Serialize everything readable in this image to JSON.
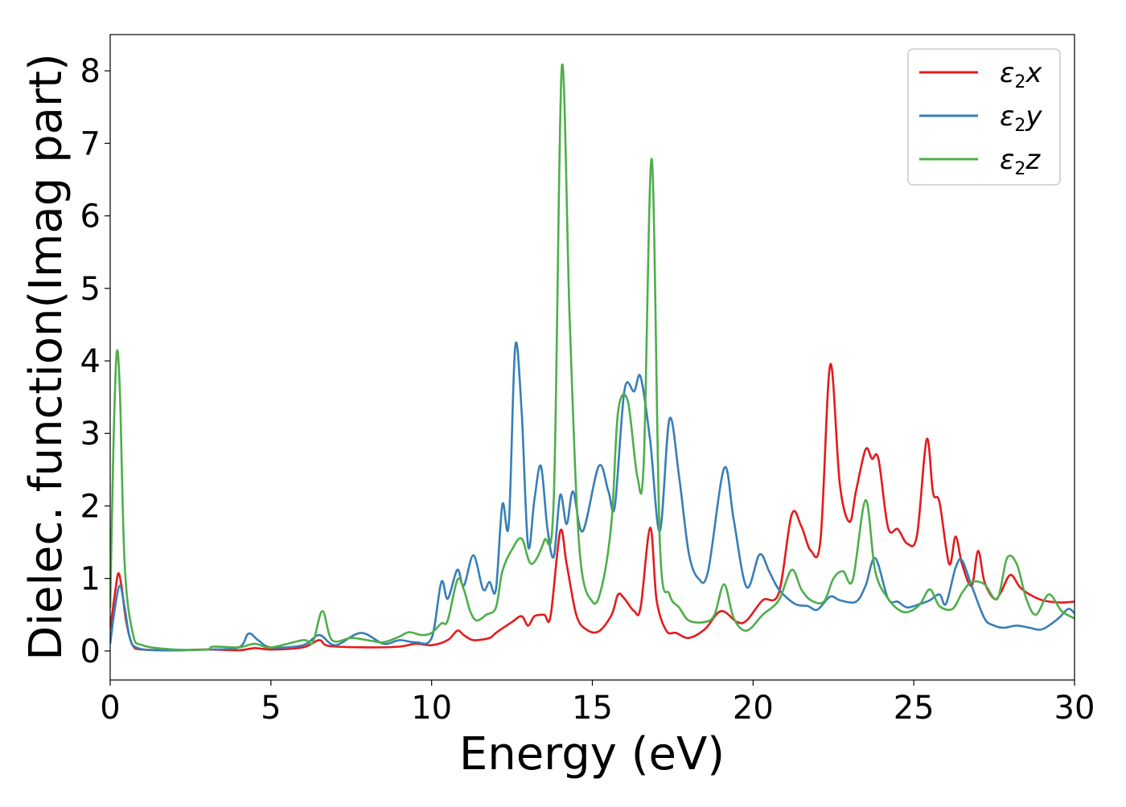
{
  "chart_data": {
    "type": "line",
    "title": "",
    "xlabel": "Energy (eV)",
    "ylabel": "Dielec. function(Imag part)",
    "xlim": [
      0,
      30
    ],
    "ylim": [
      -0.4,
      8.5
    ],
    "xticks": [
      0,
      5,
      10,
      15,
      20,
      25,
      30
    ],
    "yticks": [
      0,
      1,
      2,
      3,
      4,
      5,
      6,
      7,
      8
    ],
    "grid": false,
    "legend_position": "top-right",
    "series": [
      {
        "name": "ε2x",
        "legend_base": "ε",
        "legend_sub": "2",
        "legend_tail": "x",
        "color": "#e41a1c",
        "points": [
          [
            0,
            0.3
          ],
          [
            0.15,
            0.8
          ],
          [
            0.25,
            1.07
          ],
          [
            0.35,
            0.9
          ],
          [
            0.5,
            0.4
          ],
          [
            0.7,
            0.08
          ],
          [
            1,
            0.02
          ],
          [
            2,
            0.01
          ],
          [
            3,
            0.02
          ],
          [
            4,
            0.01
          ],
          [
            4.5,
            0.04
          ],
          [
            5,
            0.02
          ],
          [
            6,
            0.05
          ],
          [
            6.5,
            0.15
          ],
          [
            6.8,
            0.07
          ],
          [
            8,
            0.05
          ],
          [
            9,
            0.06
          ],
          [
            9.5,
            0.1
          ],
          [
            10,
            0.08
          ],
          [
            10.5,
            0.15
          ],
          [
            10.8,
            0.28
          ],
          [
            11,
            0.22
          ],
          [
            11.3,
            0.15
          ],
          [
            11.8,
            0.18
          ],
          [
            12,
            0.25
          ],
          [
            12.5,
            0.4
          ],
          [
            12.8,
            0.48
          ],
          [
            13,
            0.35
          ],
          [
            13.2,
            0.48
          ],
          [
            13.5,
            0.5
          ],
          [
            13.7,
            0.48
          ],
          [
            14,
            1.65
          ],
          [
            14.2,
            1.2
          ],
          [
            14.5,
            0.5
          ],
          [
            14.8,
            0.3
          ],
          [
            15.2,
            0.27
          ],
          [
            15.6,
            0.5
          ],
          [
            15.8,
            0.78
          ],
          [
            16,
            0.72
          ],
          [
            16.3,
            0.55
          ],
          [
            16.5,
            0.6
          ],
          [
            16.8,
            1.7
          ],
          [
            17,
            0.7
          ],
          [
            17.3,
            0.28
          ],
          [
            17.6,
            0.25
          ],
          [
            18,
            0.18
          ],
          [
            18.5,
            0.3
          ],
          [
            19,
            0.55
          ],
          [
            19.5,
            0.4
          ],
          [
            19.8,
            0.42
          ],
          [
            20.3,
            0.7
          ],
          [
            20.8,
            0.8
          ],
          [
            21.2,
            1.88
          ],
          [
            21.5,
            1.72
          ],
          [
            21.8,
            1.38
          ],
          [
            22.1,
            1.55
          ],
          [
            22.4,
            3.95
          ],
          [
            22.7,
            2.3
          ],
          [
            23,
            1.78
          ],
          [
            23.2,
            2.2
          ],
          [
            23.5,
            2.78
          ],
          [
            23.7,
            2.65
          ],
          [
            23.9,
            2.65
          ],
          [
            24.2,
            1.7
          ],
          [
            24.5,
            1.68
          ],
          [
            24.8,
            1.48
          ],
          [
            25.1,
            1.6
          ],
          [
            25.4,
            2.92
          ],
          [
            25.6,
            2.18
          ],
          [
            25.8,
            2.05
          ],
          [
            26.1,
            1.2
          ],
          [
            26.3,
            1.58
          ],
          [
            26.5,
            1.2
          ],
          [
            26.8,
            0.9
          ],
          [
            27,
            1.38
          ],
          [
            27.2,
            0.95
          ],
          [
            27.5,
            0.72
          ],
          [
            27.7,
            0.8
          ],
          [
            28,
            1.05
          ],
          [
            28.3,
            0.88
          ],
          [
            28.6,
            0.78
          ],
          [
            29,
            0.7
          ],
          [
            29.5,
            0.67
          ],
          [
            30,
            0.68
          ]
        ]
      },
      {
        "name": "ε2y",
        "legend_base": "ε",
        "legend_sub": "2",
        "legend_tail": "y",
        "color": "#377eb8",
        "points": [
          [
            0,
            0.1
          ],
          [
            0.15,
            0.6
          ],
          [
            0.3,
            0.9
          ],
          [
            0.45,
            0.6
          ],
          [
            0.6,
            0.2
          ],
          [
            0.8,
            0.05
          ],
          [
            1.5,
            0.01
          ],
          [
            3,
            0.02
          ],
          [
            4,
            0.05
          ],
          [
            4.3,
            0.24
          ],
          [
            4.6,
            0.15
          ],
          [
            5,
            0.05
          ],
          [
            6,
            0.08
          ],
          [
            6.5,
            0.22
          ],
          [
            7,
            0.08
          ],
          [
            7.8,
            0.25
          ],
          [
            8.5,
            0.1
          ],
          [
            9,
            0.15
          ],
          [
            9.5,
            0.12
          ],
          [
            10,
            0.18
          ],
          [
            10.3,
            0.95
          ],
          [
            10.5,
            0.72
          ],
          [
            10.8,
            1.12
          ],
          [
            11,
            0.9
          ],
          [
            11.3,
            1.32
          ],
          [
            11.6,
            0.85
          ],
          [
            11.8,
            0.95
          ],
          [
            12,
            0.85
          ],
          [
            12.2,
            2.02
          ],
          [
            12.4,
            1.75
          ],
          [
            12.6,
            4.2
          ],
          [
            12.8,
            3.3
          ],
          [
            13,
            1.45
          ],
          [
            13.2,
            2.1
          ],
          [
            13.4,
            2.55
          ],
          [
            13.6,
            1.7
          ],
          [
            13.8,
            1.3
          ],
          [
            14,
            2.15
          ],
          [
            14.2,
            1.75
          ],
          [
            14.4,
            2.2
          ],
          [
            14.7,
            1.65
          ],
          [
            15.2,
            2.55
          ],
          [
            15.5,
            2.2
          ],
          [
            15.7,
            2.0
          ],
          [
            16,
            3.6
          ],
          [
            16.3,
            3.58
          ],
          [
            16.5,
            3.78
          ],
          [
            16.8,
            2.9
          ],
          [
            17.1,
            1.65
          ],
          [
            17.4,
            3.2
          ],
          [
            17.7,
            2.4
          ],
          [
            18,
            1.35
          ],
          [
            18.3,
            1.0
          ],
          [
            18.6,
            1.1
          ],
          [
            19.1,
            2.52
          ],
          [
            19.4,
            1.8
          ],
          [
            19.8,
            0.88
          ],
          [
            20.2,
            1.33
          ],
          [
            20.5,
            1.1
          ],
          [
            20.8,
            0.85
          ],
          [
            21.3,
            0.65
          ],
          [
            21.7,
            0.62
          ],
          [
            22,
            0.57
          ],
          [
            22.4,
            0.75
          ],
          [
            22.7,
            0.7
          ],
          [
            23.2,
            0.68
          ],
          [
            23.5,
            0.9
          ],
          [
            23.8,
            1.28
          ],
          [
            24.2,
            0.72
          ],
          [
            24.5,
            0.68
          ],
          [
            24.8,
            0.6
          ],
          [
            25.2,
            0.65
          ],
          [
            25.5,
            0.7
          ],
          [
            25.8,
            0.78
          ],
          [
            26,
            0.65
          ],
          [
            26.3,
            1.15
          ],
          [
            26.5,
            1.25
          ],
          [
            26.8,
            0.9
          ],
          [
            27.2,
            0.45
          ],
          [
            27.5,
            0.35
          ],
          [
            27.8,
            0.32
          ],
          [
            28.2,
            0.35
          ],
          [
            28.6,
            0.32
          ],
          [
            29,
            0.3
          ],
          [
            29.5,
            0.45
          ],
          [
            29.8,
            0.58
          ],
          [
            30,
            0.52
          ]
        ]
      },
      {
        "name": "ε2z",
        "legend_base": "ε",
        "legend_sub": "2",
        "legend_tail": "z",
        "color": "#4daf4a",
        "points": [
          [
            0,
            0.6
          ],
          [
            0.1,
            2.8
          ],
          [
            0.2,
            4.1
          ],
          [
            0.3,
            3.6
          ],
          [
            0.45,
            1.2
          ],
          [
            0.7,
            0.25
          ],
          [
            1,
            0.08
          ],
          [
            2,
            0.02
          ],
          [
            3,
            0.02
          ],
          [
            3.2,
            0.06
          ],
          [
            4,
            0.05
          ],
          [
            4.5,
            0.1
          ],
          [
            5,
            0.05
          ],
          [
            6,
            0.15
          ],
          [
            6.3,
            0.12
          ],
          [
            6.6,
            0.55
          ],
          [
            6.9,
            0.15
          ],
          [
            7.5,
            0.18
          ],
          [
            8,
            0.15
          ],
          [
            8.5,
            0.12
          ],
          [
            9,
            0.2
          ],
          [
            9.3,
            0.26
          ],
          [
            9.7,
            0.22
          ],
          [
            10,
            0.25
          ],
          [
            10.3,
            0.38
          ],
          [
            10.5,
            0.42
          ],
          [
            10.8,
            0.98
          ],
          [
            11,
            0.85
          ],
          [
            11.2,
            0.55
          ],
          [
            11.4,
            0.42
          ],
          [
            11.7,
            0.5
          ],
          [
            12,
            0.6
          ],
          [
            12.2,
            1.1
          ],
          [
            12.5,
            1.4
          ],
          [
            12.8,
            1.55
          ],
          [
            13.1,
            1.2
          ],
          [
            13.5,
            1.52
          ],
          [
            13.8,
            2.1
          ],
          [
            14.05,
            8.05
          ],
          [
            14.3,
            4.5
          ],
          [
            14.6,
            1.4
          ],
          [
            15,
            0.68
          ],
          [
            15.3,
            0.9
          ],
          [
            15.6,
            1.8
          ],
          [
            15.8,
            3.3
          ],
          [
            16.1,
            3.45
          ],
          [
            16.4,
            2.4
          ],
          [
            16.6,
            2.6
          ],
          [
            16.85,
            6.78
          ],
          [
            17.1,
            1.5
          ],
          [
            17.4,
            0.78
          ],
          [
            17.7,
            0.6
          ],
          [
            18,
            0.42
          ],
          [
            18.5,
            0.4
          ],
          [
            18.8,
            0.5
          ],
          [
            19.1,
            0.92
          ],
          [
            19.4,
            0.45
          ],
          [
            19.8,
            0.28
          ],
          [
            20.3,
            0.5
          ],
          [
            20.8,
            0.7
          ],
          [
            21.2,
            1.12
          ],
          [
            21.5,
            0.85
          ],
          [
            21.8,
            0.7
          ],
          [
            22.2,
            0.68
          ],
          [
            22.5,
            1.0
          ],
          [
            22.8,
            1.1
          ],
          [
            23.1,
            0.98
          ],
          [
            23.5,
            2.08
          ],
          [
            23.8,
            1.1
          ],
          [
            24.2,
            0.72
          ],
          [
            24.6,
            0.55
          ],
          [
            24.9,
            0.55
          ],
          [
            25.2,
            0.65
          ],
          [
            25.5,
            0.85
          ],
          [
            25.8,
            0.62
          ],
          [
            26.2,
            0.58
          ],
          [
            26.5,
            0.8
          ],
          [
            26.8,
            0.95
          ],
          [
            27.2,
            0.92
          ],
          [
            27.6,
            0.72
          ],
          [
            27.9,
            1.28
          ],
          [
            28.2,
            1.2
          ],
          [
            28.5,
            0.72
          ],
          [
            28.8,
            0.5
          ],
          [
            29.2,
            0.78
          ],
          [
            29.6,
            0.55
          ],
          [
            30,
            0.45
          ]
        ]
      }
    ]
  }
}
